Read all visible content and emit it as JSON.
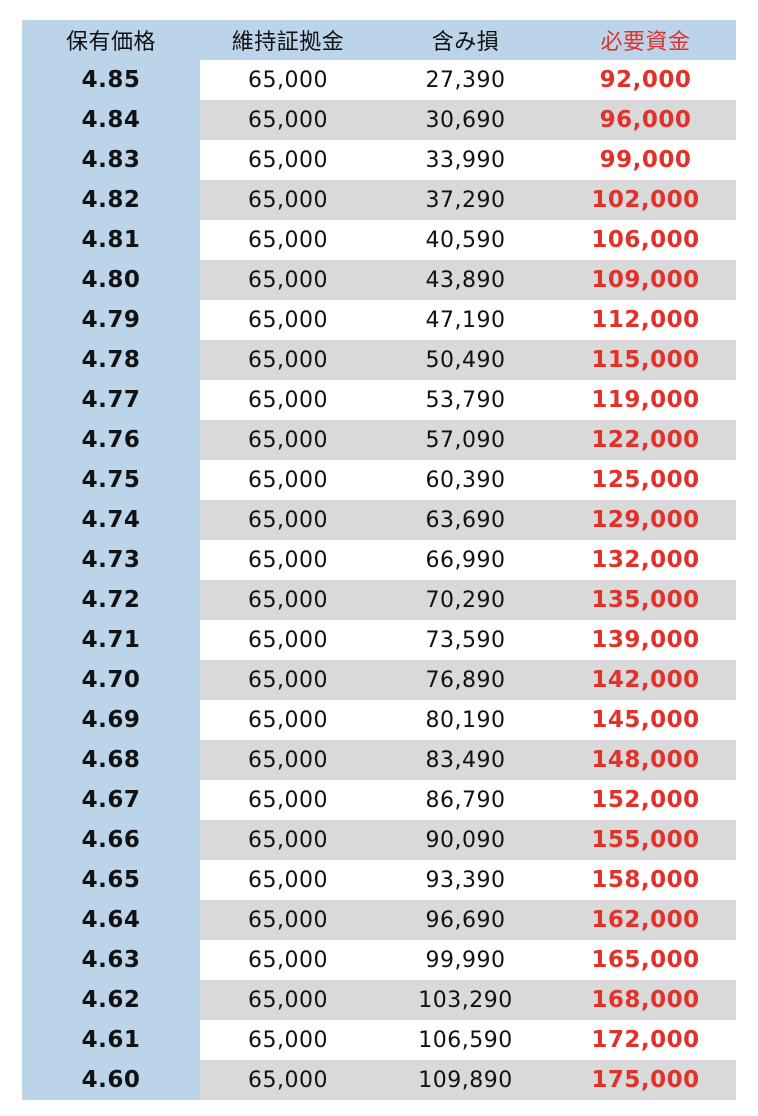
{
  "header": {
    "price": "保有価格",
    "margin": "維持証拠金",
    "loss": "含み損",
    "required": "必要資金"
  },
  "colors": {
    "header_bg": "#bcd4ea",
    "stripe": "#d9d9d9",
    "accent": "#e0322b"
  },
  "rows": [
    {
      "price": "4.85",
      "margin": "65,000",
      "loss": "27,390",
      "required": "92,000"
    },
    {
      "price": "4.84",
      "margin": "65,000",
      "loss": "30,690",
      "required": "96,000"
    },
    {
      "price": "4.83",
      "margin": "65,000",
      "loss": "33,990",
      "required": "99,000"
    },
    {
      "price": "4.82",
      "margin": "65,000",
      "loss": "37,290",
      "required": "102,000"
    },
    {
      "price": "4.81",
      "margin": "65,000",
      "loss": "40,590",
      "required": "106,000"
    },
    {
      "price": "4.80",
      "margin": "65,000",
      "loss": "43,890",
      "required": "109,000"
    },
    {
      "price": "4.79",
      "margin": "65,000",
      "loss": "47,190",
      "required": "112,000"
    },
    {
      "price": "4.78",
      "margin": "65,000",
      "loss": "50,490",
      "required": "115,000"
    },
    {
      "price": "4.77",
      "margin": "65,000",
      "loss": "53,790",
      "required": "119,000"
    },
    {
      "price": "4.76",
      "margin": "65,000",
      "loss": "57,090",
      "required": "122,000"
    },
    {
      "price": "4.75",
      "margin": "65,000",
      "loss": "60,390",
      "required": "125,000"
    },
    {
      "price": "4.74",
      "margin": "65,000",
      "loss": "63,690",
      "required": "129,000"
    },
    {
      "price": "4.73",
      "margin": "65,000",
      "loss": "66,990",
      "required": "132,000"
    },
    {
      "price": "4.72",
      "margin": "65,000",
      "loss": "70,290",
      "required": "135,000"
    },
    {
      "price": "4.71",
      "margin": "65,000",
      "loss": "73,590",
      "required": "139,000"
    },
    {
      "price": "4.70",
      "margin": "65,000",
      "loss": "76,890",
      "required": "142,000"
    },
    {
      "price": "4.69",
      "margin": "65,000",
      "loss": "80,190",
      "required": "145,000"
    },
    {
      "price": "4.68",
      "margin": "65,000",
      "loss": "83,490",
      "required": "148,000"
    },
    {
      "price": "4.67",
      "margin": "65,000",
      "loss": "86,790",
      "required": "152,000"
    },
    {
      "price": "4.66",
      "margin": "65,000",
      "loss": "90,090",
      "required": "155,000"
    },
    {
      "price": "4.65",
      "margin": "65,000",
      "loss": "93,390",
      "required": "158,000"
    },
    {
      "price": "4.64",
      "margin": "65,000",
      "loss": "96,690",
      "required": "162,000"
    },
    {
      "price": "4.63",
      "margin": "65,000",
      "loss": "99,990",
      "required": "165,000"
    },
    {
      "price": "4.62",
      "margin": "65,000",
      "loss": "103,290",
      "required": "168,000"
    },
    {
      "price": "4.61",
      "margin": "65,000",
      "loss": "106,590",
      "required": "172,000"
    },
    {
      "price": "4.60",
      "margin": "65,000",
      "loss": "109,890",
      "required": "175,000"
    }
  ]
}
